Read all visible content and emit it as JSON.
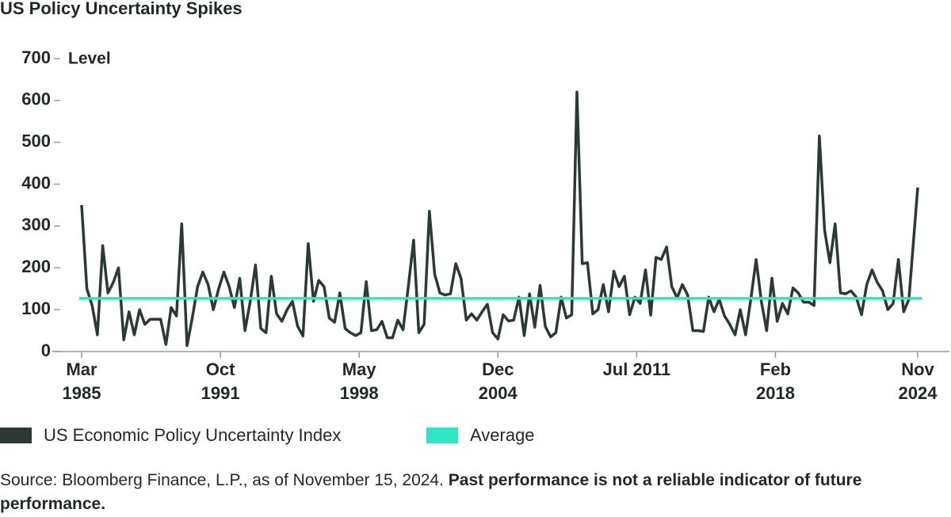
{
  "chart_data": {
    "type": "line",
    "title": "US Policy Uncertainty Spikes",
    "y_label": "Level",
    "x": [
      "1985-03",
      "1985-06",
      "1985-09",
      "1985-12",
      "1986-03",
      "1986-06",
      "1986-09",
      "1986-12",
      "1987-03",
      "1987-06",
      "1987-09",
      "1987-12",
      "1988-03",
      "1988-06",
      "1988-09",
      "1988-12",
      "1989-03",
      "1989-06",
      "1989-09",
      "1989-12",
      "1990-03",
      "1990-06",
      "1990-09",
      "1990-12",
      "1991-03",
      "1991-06",
      "1991-09",
      "1991-12",
      "1992-03",
      "1992-06",
      "1992-09",
      "1992-12",
      "1993-03",
      "1993-06",
      "1993-09",
      "1993-12",
      "1994-03",
      "1994-06",
      "1994-09",
      "1994-12",
      "1995-03",
      "1995-06",
      "1995-09",
      "1995-12",
      "1996-03",
      "1996-06",
      "1996-09",
      "1996-12",
      "1997-03",
      "1997-06",
      "1997-09",
      "1997-12",
      "1998-03",
      "1998-06",
      "1998-09",
      "1998-12",
      "1999-03",
      "1999-06",
      "1999-09",
      "1999-12",
      "2000-03",
      "2000-06",
      "2000-09",
      "2000-12",
      "2001-03",
      "2001-06",
      "2001-09",
      "2001-12",
      "2002-03",
      "2002-06",
      "2002-09",
      "2002-12",
      "2003-03",
      "2003-06",
      "2003-09",
      "2003-12",
      "2004-03",
      "2004-06",
      "2004-09",
      "2004-12",
      "2005-03",
      "2005-06",
      "2005-09",
      "2005-12",
      "2006-03",
      "2006-06",
      "2006-09",
      "2006-12",
      "2007-03",
      "2007-06",
      "2007-09",
      "2007-12",
      "2008-03",
      "2008-06",
      "2008-09",
      "2008-12",
      "2009-03",
      "2009-06",
      "2009-09",
      "2009-12",
      "2010-03",
      "2010-06",
      "2010-09",
      "2010-12",
      "2011-03",
      "2011-06",
      "2011-09",
      "2011-12",
      "2012-03",
      "2012-06",
      "2012-09",
      "2012-12",
      "2013-03",
      "2013-06",
      "2013-09",
      "2013-12",
      "2014-03",
      "2014-06",
      "2014-09",
      "2014-12",
      "2015-03",
      "2015-06",
      "2015-09",
      "2015-12",
      "2016-03",
      "2016-06",
      "2016-09",
      "2016-12",
      "2017-03",
      "2017-06",
      "2017-09",
      "2017-12",
      "2018-03",
      "2018-06",
      "2018-09",
      "2018-12",
      "2019-03",
      "2019-06",
      "2019-09",
      "2019-12",
      "2020-03",
      "2020-06",
      "2020-09",
      "2020-12",
      "2021-03",
      "2021-06",
      "2021-09",
      "2021-12",
      "2022-03",
      "2022-06",
      "2022-09",
      "2022-12",
      "2023-03",
      "2023-06",
      "2023-09",
      "2023-12",
      "2024-03",
      "2024-06",
      "2024-11"
    ],
    "series": [
      {
        "name": "US Economic Policy Uncertainty Index",
        "color": "#2b3b33",
        "values": [
          350,
          150,
          110,
          40,
          253,
          140,
          165,
          200,
          28,
          95,
          40,
          100,
          65,
          77,
          77,
          77,
          17,
          105,
          85,
          305,
          14,
          80,
          155,
          190,
          160,
          100,
          150,
          190,
          155,
          105,
          175,
          50,
          120,
          207,
          55,
          45,
          180,
          90,
          72,
          100,
          120,
          60,
          37,
          258,
          120,
          170,
          155,
          80,
          70,
          140,
          55,
          45,
          38,
          45,
          167,
          50,
          52,
          72,
          33,
          33,
          75,
          52,
          155,
          266,
          45,
          65,
          335,
          185,
          140,
          135,
          138,
          210,
          175,
          75,
          90,
          75,
          95,
          113,
          45,
          30,
          88,
          73,
          75,
          130,
          38,
          138,
          58,
          158,
          60,
          35,
          45,
          130,
          80,
          88,
          620,
          210,
          212,
          90,
          100,
          160,
          95,
          192,
          155,
          180,
          88,
          130,
          115,
          195,
          87,
          225,
          220,
          250,
          155,
          128,
          160,
          135,
          50,
          50,
          48,
          130,
          95,
          125,
          85,
          65,
          40,
          100,
          40,
          125,
          220,
          120,
          50,
          175,
          72,
          115,
          90,
          152,
          140,
          118,
          118,
          110,
          515,
          290,
          212,
          305,
          140,
          138,
          145,
          130,
          88,
          160,
          195,
          165,
          145,
          100,
          115,
          220,
          95,
          125,
          392
        ]
      }
    ],
    "average": {
      "name": "Average",
      "color": "#2ee6c2",
      "value": 127
    },
    "xlim": [
      "1985-03",
      "2024-11"
    ],
    "xticks": [
      {
        "value": "1985-03",
        "label": "Mar 1985"
      },
      {
        "value": "1991-10",
        "label": "Oct 1991"
      },
      {
        "value": "1998-05",
        "label": "May 1998"
      },
      {
        "value": "2004-12",
        "label": "Dec 2004"
      },
      {
        "value": "2011-07",
        "label": "Jul 2011"
      },
      {
        "value": "2018-02",
        "label": "Feb 2018"
      },
      {
        "value": "2024-11",
        "label": "Nov 2024"
      }
    ],
    "ylim": [
      0,
      700
    ],
    "yticks": [
      0,
      100,
      200,
      300,
      400,
      500,
      600,
      700
    ],
    "grid": false,
    "source": "Source: Bloomberg Finance, L.P., as of November 15, 2024.",
    "note": "Past performance is not a reliable indicator of future performance."
  }
}
